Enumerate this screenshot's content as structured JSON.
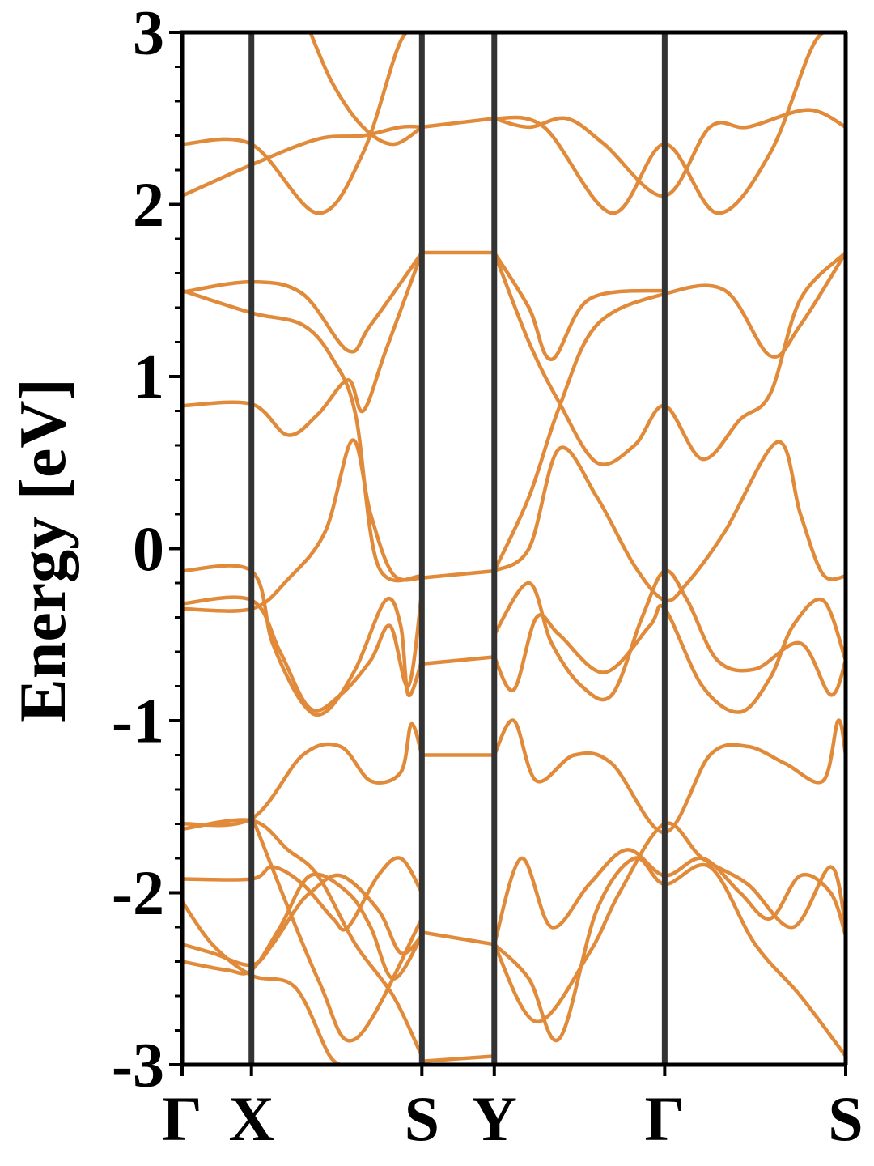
{
  "chart_data": {
    "type": "line",
    "title": "",
    "xlabel": "",
    "ylabel": "Energy [eV]",
    "ylim": [
      -3,
      3
    ],
    "yticks": [
      "-3",
      "-2",
      "-1",
      "0",
      "1",
      "2",
      "3"
    ],
    "ytick_values": [
      -3,
      -2,
      -1,
      0,
      1,
      2,
      3
    ],
    "yminor_step": 0.2,
    "grid": false,
    "legend": "none",
    "colors": {
      "band": "#e08a3a",
      "kline": "#333333",
      "axis": "#000000"
    },
    "x_range": [
      0,
      4.4
    ],
    "kpoints": [
      {
        "label": "Γ",
        "x": 0.0
      },
      {
        "label": "X",
        "x": 0.46
      },
      {
        "label": "S",
        "x": 1.59
      },
      {
        "label": "Y",
        "x": 2.07
      },
      {
        "label": "Γ",
        "x": 3.2
      },
      {
        "label": "S",
        "x": 4.4
      }
    ],
    "series": [
      {
        "points": [
          [
            0,
            -2.05
          ],
          [
            0.2,
            -2.3
          ],
          [
            0.46,
            -2.48
          ],
          [
            0.75,
            -2.55
          ],
          [
            0.98,
            -2.95
          ],
          [
            1.1,
            -3.0
          ]
        ]
      },
      {
        "points": [
          [
            0,
            -2.3
          ],
          [
            0.2,
            -2.35
          ],
          [
            0.46,
            -2.42
          ],
          [
            0.6,
            -2.3
          ],
          [
            0.75,
            -2.1
          ],
          [
            0.85,
            -2.0
          ],
          [
            1.05,
            -1.9
          ],
          [
            1.3,
            -2.1
          ],
          [
            1.45,
            -2.35
          ],
          [
            1.59,
            -2.25
          ]
        ]
      },
      {
        "points": [
          [
            0,
            -1.92
          ],
          [
            0.46,
            -1.92
          ],
          [
            0.6,
            -1.85
          ],
          [
            0.8,
            -1.95
          ],
          [
            1.0,
            -2.15
          ],
          [
            1.1,
            -2.2
          ],
          [
            1.3,
            -1.9
          ],
          [
            1.45,
            -1.8
          ],
          [
            1.59,
            -2.0
          ]
        ]
      },
      {
        "points": [
          [
            0,
            -2.4
          ],
          [
            0.3,
            -2.45
          ],
          [
            0.46,
            -2.45
          ],
          [
            0.65,
            -2.2
          ],
          [
            0.85,
            -1.9
          ],
          [
            1.1,
            -2.0
          ],
          [
            1.25,
            -2.2
          ],
          [
            1.4,
            -2.5
          ],
          [
            1.59,
            -2.25
          ]
        ]
      },
      {
        "points": [
          [
            0,
            -1.63
          ],
          [
            0.46,
            -1.58
          ],
          [
            0.7,
            -1.75
          ],
          [
            0.9,
            -1.9
          ],
          [
            1.15,
            -2.3
          ],
          [
            1.4,
            -2.6
          ],
          [
            1.59,
            -2.95
          ]
        ]
      },
      {
        "points": [
          [
            0,
            -1.6
          ],
          [
            0.46,
            -1.57
          ],
          [
            0.8,
            -1.2
          ],
          [
            1.05,
            -1.15
          ],
          [
            1.25,
            -1.35
          ],
          [
            1.45,
            -1.3
          ],
          [
            1.52,
            -1.02
          ],
          [
            1.59,
            -1.2
          ]
        ]
      },
      {
        "points": [
          [
            0.46,
            -1.55
          ],
          [
            0.9,
            -2.5
          ],
          [
            1.15,
            -2.85
          ],
          [
            1.59,
            -2.15
          ]
        ]
      },
      {
        "points": [
          [
            0,
            -0.13
          ],
          [
            0.46,
            -0.13
          ],
          [
            0.6,
            -0.55
          ],
          [
            0.8,
            -0.9
          ],
          [
            0.95,
            -0.95
          ],
          [
            1.15,
            -0.7
          ],
          [
            1.35,
            -0.3
          ],
          [
            1.45,
            -0.45
          ],
          [
            1.5,
            -0.85
          ],
          [
            1.59,
            -0.65
          ]
        ]
      },
      {
        "points": [
          [
            0,
            -0.32
          ],
          [
            0.46,
            -0.3
          ],
          [
            0.65,
            -0.6
          ],
          [
            0.85,
            -0.93
          ],
          [
            1.05,
            -0.85
          ],
          [
            1.25,
            -0.65
          ],
          [
            1.38,
            -0.45
          ],
          [
            1.5,
            -0.8
          ],
          [
            1.59,
            -0.25
          ]
        ]
      },
      {
        "points": [
          [
            0,
            -0.35
          ],
          [
            0.46,
            -0.35
          ],
          [
            0.7,
            -0.18
          ],
          [
            0.95,
            0.1
          ],
          [
            1.13,
            0.63
          ],
          [
            1.25,
            0.2
          ],
          [
            1.4,
            -0.15
          ],
          [
            1.59,
            -0.17
          ]
        ]
      },
      {
        "points": [
          [
            0,
            0.83
          ],
          [
            0.46,
            0.84
          ],
          [
            0.7,
            0.66
          ],
          [
            0.9,
            0.78
          ],
          [
            1.1,
            0.98
          ],
          [
            1.2,
            0.8
          ],
          [
            1.35,
            1.15
          ],
          [
            1.59,
            1.72
          ]
        ]
      },
      {
        "points": [
          [
            0,
            1.49
          ],
          [
            0.46,
            1.55
          ],
          [
            0.8,
            1.48
          ],
          [
            1.1,
            1.15
          ],
          [
            1.25,
            1.3
          ],
          [
            1.59,
            1.72
          ]
        ]
      },
      {
        "points": [
          [
            0,
            1.5
          ],
          [
            0.46,
            1.37
          ],
          [
            0.8,
            1.3
          ],
          [
            1.0,
            1.1
          ],
          [
            1.15,
            0.78
          ],
          [
            1.3,
            -0.1
          ],
          [
            1.59,
            -0.16
          ]
        ]
      },
      {
        "points": [
          [
            0,
            2.05
          ],
          [
            0.46,
            2.23
          ],
          [
            0.9,
            2.38
          ],
          [
            1.2,
            2.4
          ],
          [
            1.45,
            2.45
          ],
          [
            1.59,
            2.45
          ]
        ]
      },
      {
        "points": [
          [
            0,
            2.35
          ],
          [
            0.46,
            2.35
          ],
          [
            0.9,
            1.95
          ],
          [
            1.2,
            2.3
          ],
          [
            1.45,
            2.95
          ],
          [
            1.59,
            3.0
          ]
        ]
      },
      {
        "points": [
          [
            0.85,
            3.0
          ],
          [
            1.0,
            2.7
          ],
          [
            1.2,
            2.45
          ],
          [
            1.4,
            2.35
          ],
          [
            1.59,
            2.45
          ]
        ]
      },
      {
        "points": [
          [
            1.59,
            1.72
          ],
          [
            2.07,
            1.72
          ]
        ]
      },
      {
        "points": [
          [
            1.59,
            -0.17
          ],
          [
            2.07,
            -0.13
          ]
        ]
      },
      {
        "points": [
          [
            1.59,
            -0.67
          ],
          [
            2.07,
            -0.63
          ]
        ]
      },
      {
        "points": [
          [
            1.59,
            -1.2
          ],
          [
            2.07,
            -1.2
          ]
        ]
      },
      {
        "points": [
          [
            1.59,
            -2.23
          ],
          [
            2.07,
            -2.3
          ]
        ]
      },
      {
        "points": [
          [
            1.59,
            2.45
          ],
          [
            2.07,
            2.5
          ]
        ]
      },
      {
        "points": [
          [
            1.59,
            -2.98
          ],
          [
            2.07,
            -2.95
          ]
        ]
      },
      {
        "points": [
          [
            2.07,
            1.72
          ],
          [
            2.3,
            1.4
          ],
          [
            2.45,
            1.1
          ],
          [
            2.7,
            1.45
          ],
          [
            3.2,
            1.5
          ]
        ]
      },
      {
        "points": [
          [
            2.07,
            1.72
          ],
          [
            2.3,
            1.2
          ],
          [
            2.5,
            0.85
          ],
          [
            2.75,
            0.5
          ],
          [
            3.0,
            0.6
          ],
          [
            3.2,
            0.83
          ],
          [
            3.45,
            0.52
          ],
          [
            3.7,
            0.75
          ],
          [
            3.9,
            0.9
          ],
          [
            4.1,
            1.45
          ],
          [
            4.4,
            1.72
          ]
        ]
      },
      {
        "points": [
          [
            2.07,
            -0.13
          ],
          [
            2.3,
            0.3
          ],
          [
            2.5,
            0.82
          ],
          [
            2.75,
            1.3
          ],
          [
            3.2,
            1.48
          ],
          [
            3.6,
            1.5
          ],
          [
            3.9,
            1.12
          ],
          [
            4.1,
            1.3
          ],
          [
            4.4,
            1.72
          ]
        ]
      },
      {
        "points": [
          [
            2.07,
            -0.13
          ],
          [
            2.3,
            0.0
          ],
          [
            2.5,
            0.58
          ],
          [
            2.75,
            0.3
          ],
          [
            3.0,
            -0.1
          ],
          [
            3.2,
            -0.3
          ],
          [
            3.35,
            -0.2
          ],
          [
            3.6,
            0.1
          ],
          [
            3.95,
            0.62
          ],
          [
            4.1,
            0.2
          ],
          [
            4.25,
            -0.15
          ],
          [
            4.4,
            -0.16
          ]
        ]
      },
      {
        "points": [
          [
            2.07,
            -0.63
          ],
          [
            2.2,
            -0.82
          ],
          [
            2.35,
            -0.4
          ],
          [
            2.5,
            -0.5
          ],
          [
            2.8,
            -0.72
          ],
          [
            3.1,
            -0.45
          ],
          [
            3.2,
            -0.35
          ],
          [
            3.45,
            -0.8
          ],
          [
            3.7,
            -0.95
          ],
          [
            3.9,
            -0.75
          ],
          [
            4.05,
            -0.45
          ],
          [
            4.25,
            -0.3
          ],
          [
            4.4,
            -0.65
          ]
        ]
      },
      {
        "points": [
          [
            2.07,
            -0.5
          ],
          [
            2.3,
            -0.2
          ],
          [
            2.45,
            -0.55
          ],
          [
            2.65,
            -0.8
          ],
          [
            2.85,
            -0.85
          ],
          [
            3.05,
            -0.4
          ],
          [
            3.2,
            -0.13
          ],
          [
            3.35,
            -0.3
          ],
          [
            3.55,
            -0.65
          ],
          [
            3.8,
            -0.7
          ],
          [
            4.1,
            -0.55
          ],
          [
            4.3,
            -0.85
          ],
          [
            4.4,
            -0.65
          ]
        ]
      },
      {
        "points": [
          [
            2.07,
            -1.2
          ],
          [
            2.2,
            -1.0
          ],
          [
            2.35,
            -1.35
          ],
          [
            2.6,
            -1.2
          ],
          [
            2.85,
            -1.25
          ],
          [
            3.2,
            -1.65
          ],
          [
            3.5,
            -1.2
          ],
          [
            3.75,
            -1.15
          ],
          [
            4.0,
            -1.25
          ],
          [
            4.25,
            -1.35
          ],
          [
            4.35,
            -1.0
          ],
          [
            4.4,
            -1.2
          ]
        ]
      },
      {
        "points": [
          [
            2.07,
            2.5
          ],
          [
            2.3,
            2.45
          ],
          [
            2.55,
            2.5
          ],
          [
            2.8,
            2.35
          ],
          [
            3.2,
            2.05
          ],
          [
            3.5,
            2.45
          ],
          [
            3.75,
            2.45
          ],
          [
            4.15,
            2.55
          ],
          [
            4.4,
            2.45
          ]
        ]
      },
      {
        "points": [
          [
            2.07,
            2.5
          ],
          [
            2.4,
            2.45
          ],
          [
            2.85,
            1.95
          ],
          [
            3.2,
            2.35
          ],
          [
            3.55,
            1.95
          ],
          [
            3.9,
            2.3
          ],
          [
            4.2,
            2.95
          ],
          [
            4.4,
            3.0
          ]
        ]
      },
      {
        "points": [
          [
            2.07,
            -2.3
          ],
          [
            2.25,
            -1.8
          ],
          [
            2.45,
            -2.2
          ],
          [
            2.7,
            -1.95
          ],
          [
            2.95,
            -1.75
          ],
          [
            3.2,
            -1.9
          ],
          [
            3.45,
            -1.8
          ],
          [
            3.7,
            -2.0
          ],
          [
            3.9,
            -2.15
          ],
          [
            4.1,
            -1.9
          ],
          [
            4.3,
            -2.0
          ],
          [
            4.4,
            -2.25
          ]
        ]
      },
      {
        "points": [
          [
            2.07,
            -2.3
          ],
          [
            2.35,
            -2.75
          ],
          [
            2.7,
            -2.35
          ],
          [
            2.9,
            -2.0
          ],
          [
            3.2,
            -1.6
          ],
          [
            3.45,
            -1.8
          ],
          [
            3.75,
            -1.95
          ],
          [
            4.05,
            -2.2
          ],
          [
            4.3,
            -1.85
          ],
          [
            4.4,
            -2.2
          ]
        ]
      },
      {
        "points": [
          [
            2.07,
            -2.3
          ],
          [
            2.3,
            -2.5
          ],
          [
            2.5,
            -2.85
          ],
          [
            2.75,
            -2.1
          ],
          [
            3.0,
            -1.8
          ],
          [
            3.2,
            -1.95
          ],
          [
            3.5,
            -1.85
          ],
          [
            3.8,
            -2.3
          ],
          [
            4.1,
            -2.6
          ],
          [
            4.4,
            -2.95
          ]
        ]
      }
    ]
  }
}
